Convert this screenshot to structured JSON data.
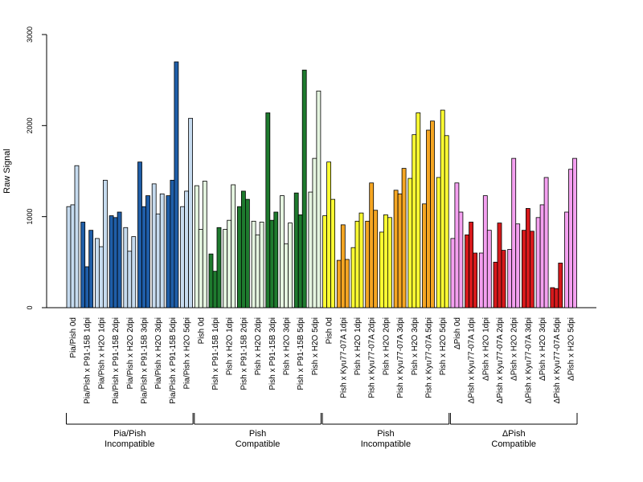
{
  "chart_data": {
    "type": "bar",
    "ylabel": "Raw Signal",
    "ylim": [
      0,
      3000
    ],
    "yticks": [
      0,
      1000,
      2000,
      3000
    ],
    "grid": false,
    "legend": "none",
    "categories": [
      "Pia/Pish 0d",
      "Pia/Pish x P91-15B 1dpi",
      "Pia/Pish x H2O 1dpi",
      "Pia/Pish x P91-15B 2dpi",
      "Pia/Pish x H2O 2dpi",
      "Pia/Pish x P91-15B 3dpi",
      "Pia/Pish x H2O 3dpi",
      "Pia/Pish x P91-15B 5dpi",
      "Pia/Pish x H2O 5dpi",
      "Pish 0d",
      "Pish x P91-15B 1dpi",
      "Pish x H2O 1dpi",
      "Pish x P91-15B 2dpi",
      "Pish x H2O 2dpi",
      "Pish x P91-15B 3dpi",
      "Pish x H2O 3dpi",
      "Pish x P91-15B 5dpi",
      "Pish x H2O 5dpi",
      "Pish 0d",
      "Pish x Kyu77-07A 1dpi",
      "Pish x H2O 1dpi",
      "Pish x Kyu77-07A 2dpi",
      "Pish x H2O 2dpi",
      "Pish x Kyu77-07A 3dpi",
      "Pish x H2O 3dpi",
      "Pish x Kyu77-07A 5dpi",
      "Pish x H2O 5dpi",
      "ΔPish 0d",
      "ΔPish x Kyu77-07A 1dpi",
      "ΔPish x H2O 1dpi",
      "ΔPish x Kyu77-07A 2dpi",
      "ΔPish x H2O 2dpi",
      "ΔPish x Kyu77-07A 3dpi",
      "ΔPish x H2O 3dpi",
      "ΔPish x Kyu77-07A 5dpi",
      "ΔPish x H2O 5dpi"
    ],
    "values": [
      [
        1110,
        1130,
        1560
      ],
      [
        940,
        450,
        850
      ],
      [
        760,
        670,
        1400
      ],
      [
        1010,
        990,
        1050
      ],
      [
        880,
        620,
        780
      ],
      [
        1600,
        1110,
        1230
      ],
      [
        1360,
        1030,
        1250
      ],
      [
        1230,
        1400,
        2700
      ],
      [
        1110,
        1280,
        2080
      ],
      [
        1340,
        860,
        1390
      ],
      [
        590,
        400,
        880
      ],
      [
        860,
        960,
        1350
      ],
      [
        1110,
        1280,
        1190
      ],
      [
        950,
        800,
        940
      ],
      [
        2140,
        960,
        1050
      ],
      [
        1230,
        700,
        930
      ],
      [
        1260,
        1020,
        2610
      ],
      [
        1270,
        1640,
        2380
      ],
      [
        1010,
        1600,
        1190
      ],
      [
        520,
        910,
        530
      ],
      [
        660,
        950,
        1040
      ],
      [
        950,
        1370,
        1070
      ],
      [
        830,
        1020,
        990
      ],
      [
        1290,
        1250,
        1530
      ],
      [
        1420,
        1900,
        2140
      ],
      [
        1140,
        1950,
        2050
      ],
      [
        1430,
        2170,
        1890
      ],
      [
        760,
        1370,
        1050
      ],
      [
        800,
        940,
        600
      ],
      [
        600,
        1230,
        850
      ],
      [
        500,
        930,
        630
      ],
      [
        640,
        1640,
        920
      ],
      [
        850,
        1090,
        840
      ],
      [
        990,
        1130,
        1430
      ],
      [
        220,
        210,
        490
      ],
      [
        1050,
        1520,
        1640
      ]
    ],
    "groups": [
      {
        "label_line1": "Pia/Pish",
        "label_line2": "Incompatible",
        "start": 0,
        "end": 8
      },
      {
        "label_line1": "Pish",
        "label_line2": "Compatible",
        "start": 9,
        "end": 17
      },
      {
        "label_line1": "Pish",
        "label_line2": "Incompatible",
        "start": 18,
        "end": 26
      },
      {
        "label_line1": "ΔPish",
        "label_line2": "Compatible",
        "start": 27,
        "end": 35
      }
    ],
    "colors": {
      "Pia/Pish_H2O": "#c6dbef",
      "Pia/Pish_P91": "#1f5ea8",
      "Pish_H2O": "#e5f5e0",
      "Pish_P91": "#1e7a2e",
      "Pish_H2O_yellow": "#ffff33",
      "Pish_Kyu77": "#f5a623",
      "dPish_H2O": "#f4a0f0",
      "dPish_Kyu77": "#d7191c",
      "axis": "#000000"
    },
    "bar_color_keys": [
      "Pia/Pish_H2O",
      "Pia/Pish_P91",
      "Pia/Pish_H2O",
      "Pia/Pish_P91",
      "Pia/Pish_H2O",
      "Pia/Pish_P91",
      "Pia/Pish_H2O",
      "Pia/Pish_P91",
      "Pia/Pish_H2O",
      "Pish_H2O",
      "Pish_P91",
      "Pish_H2O",
      "Pish_P91",
      "Pish_H2O",
      "Pish_P91",
      "Pish_H2O",
      "Pish_P91",
      "Pish_H2O",
      "Pish_H2O_yellow",
      "Pish_Kyu77",
      "Pish_H2O_yellow",
      "Pish_Kyu77",
      "Pish_H2O_yellow",
      "Pish_Kyu77",
      "Pish_H2O_yellow",
      "Pish_Kyu77",
      "Pish_H2O_yellow",
      "dPish_H2O",
      "dPish_Kyu77",
      "dPish_H2O",
      "dPish_Kyu77",
      "dPish_H2O",
      "dPish_Kyu77",
      "dPish_H2O",
      "dPish_Kyu77",
      "dPish_H2O"
    ]
  }
}
